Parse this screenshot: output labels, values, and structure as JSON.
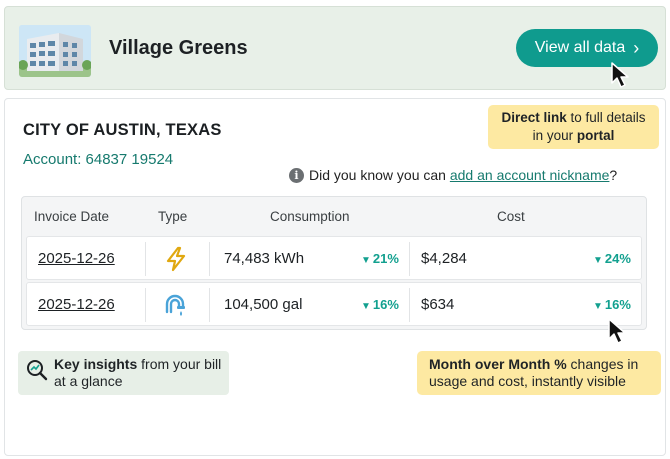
{
  "header": {
    "property_name": "Village Greens",
    "view_button_label": "View all data",
    "view_button_chevron": "›"
  },
  "account": {
    "city": "CITY OF AUSTIN, TEXAS",
    "account_label": "Account: 64837 19524"
  },
  "callouts": {
    "direct_link_bold": "Direct link",
    "direct_link_rest_1": " to full details",
    "direct_link_rest_2": "in your ",
    "direct_link_bold_2": "portal",
    "key_insights_bold": "Key insights",
    "key_insights_rest_1": " from your bill",
    "key_insights_rest_2": "at a glance",
    "mom_bold": "Month over Month %",
    "mom_rest_1": " changes in",
    "mom_rest_2": "usage and cost, instantly visible"
  },
  "nickname_tip": {
    "prefix": "Did you know you can ",
    "link": "add an account nickname",
    "suffix": "?"
  },
  "table": {
    "headers": {
      "invoice_date": "Invoice Date",
      "type": "Type",
      "consumption": "Consumption",
      "cost": "Cost"
    },
    "rows": [
      {
        "invoice_date": "2025-12-26",
        "type_icon": "lightning-bolt-icon",
        "consumption": "74,483 kWh",
        "consumption_change": "21%",
        "cost": "$4,284",
        "cost_change": "24%"
      },
      {
        "invoice_date": "2025-12-26",
        "type_icon": "water-faucet-icon",
        "consumption": "104,500 gal",
        "consumption_change": "16%",
        "cost": "$634",
        "cost_change": "16%"
      }
    ],
    "down_arrow": "▼"
  },
  "colors": {
    "accent_teal": "#0f9b8e",
    "header_bg": "#e8f0e8",
    "callout_yellow": "#fde9a2",
    "change_green": "#12a08f"
  }
}
